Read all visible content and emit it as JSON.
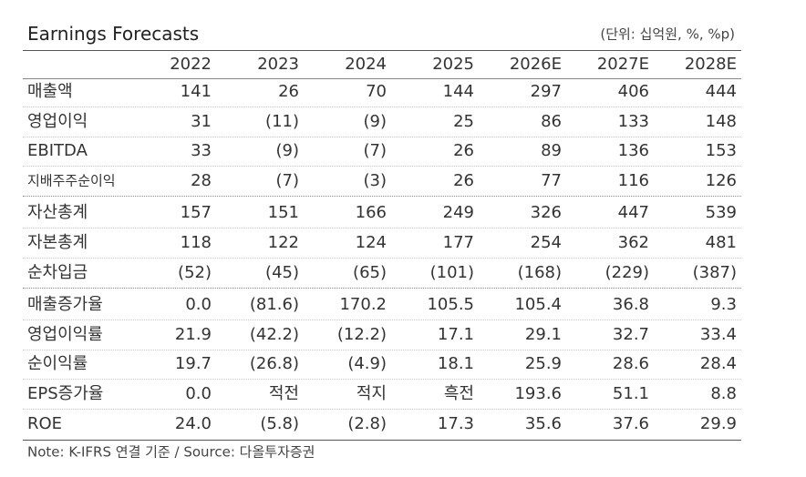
{
  "header": {
    "title": "Earnings Forecasts",
    "unit": "(단위: 십억원, %, %p)"
  },
  "table": {
    "columns": [
      "2022",
      "2023",
      "2024",
      "2025",
      "2026E",
      "2027E",
      "2028E"
    ],
    "groups": [
      {
        "rows": [
          [
            "매출액",
            "141",
            "26",
            "70",
            "144",
            "297",
            "406",
            "444"
          ],
          [
            "영업이익",
            "31",
            "(11)",
            "(9)",
            "25",
            "86",
            "133",
            "148"
          ],
          [
            "EBITDA",
            "33",
            "(9)",
            "(7)",
            "26",
            "89",
            "136",
            "153"
          ],
          [
            "지배주주순이익",
            "28",
            "(7)",
            "(3)",
            "26",
            "77",
            "116",
            "126"
          ]
        ]
      },
      {
        "rows": [
          [
            "자산총계",
            "157",
            "151",
            "166",
            "249",
            "326",
            "447",
            "539"
          ],
          [
            "자본총계",
            "118",
            "122",
            "124",
            "177",
            "254",
            "362",
            "481"
          ],
          [
            "순차입금",
            "(52)",
            "(45)",
            "(65)",
            "(101)",
            "(168)",
            "(229)",
            "(387)"
          ]
        ]
      },
      {
        "rows": [
          [
            "매출증가율",
            "0.0",
            "(81.6)",
            "170.2",
            "105.5",
            "105.4",
            "36.8",
            "9.3"
          ],
          [
            "영업이익률",
            "21.9",
            "(42.2)",
            "(12.2)",
            "17.1",
            "29.1",
            "32.7",
            "33.4"
          ],
          [
            "순이익률",
            "19.7",
            "(26.8)",
            "(4.9)",
            "18.1",
            "25.9",
            "28.6",
            "28.4"
          ],
          [
            "EPS증가율",
            "0.0",
            "적전",
            "적지",
            "흑전",
            "193.6",
            "51.1",
            "8.8"
          ],
          [
            "ROE",
            "24.0",
            "(5.8)",
            "(2.8)",
            "17.3",
            "35.6",
            "37.6",
            "29.9"
          ]
        ]
      }
    ]
  },
  "footer": {
    "note": "Note: K-IFRS 연결 기준 / Source: 다올투자증권"
  }
}
